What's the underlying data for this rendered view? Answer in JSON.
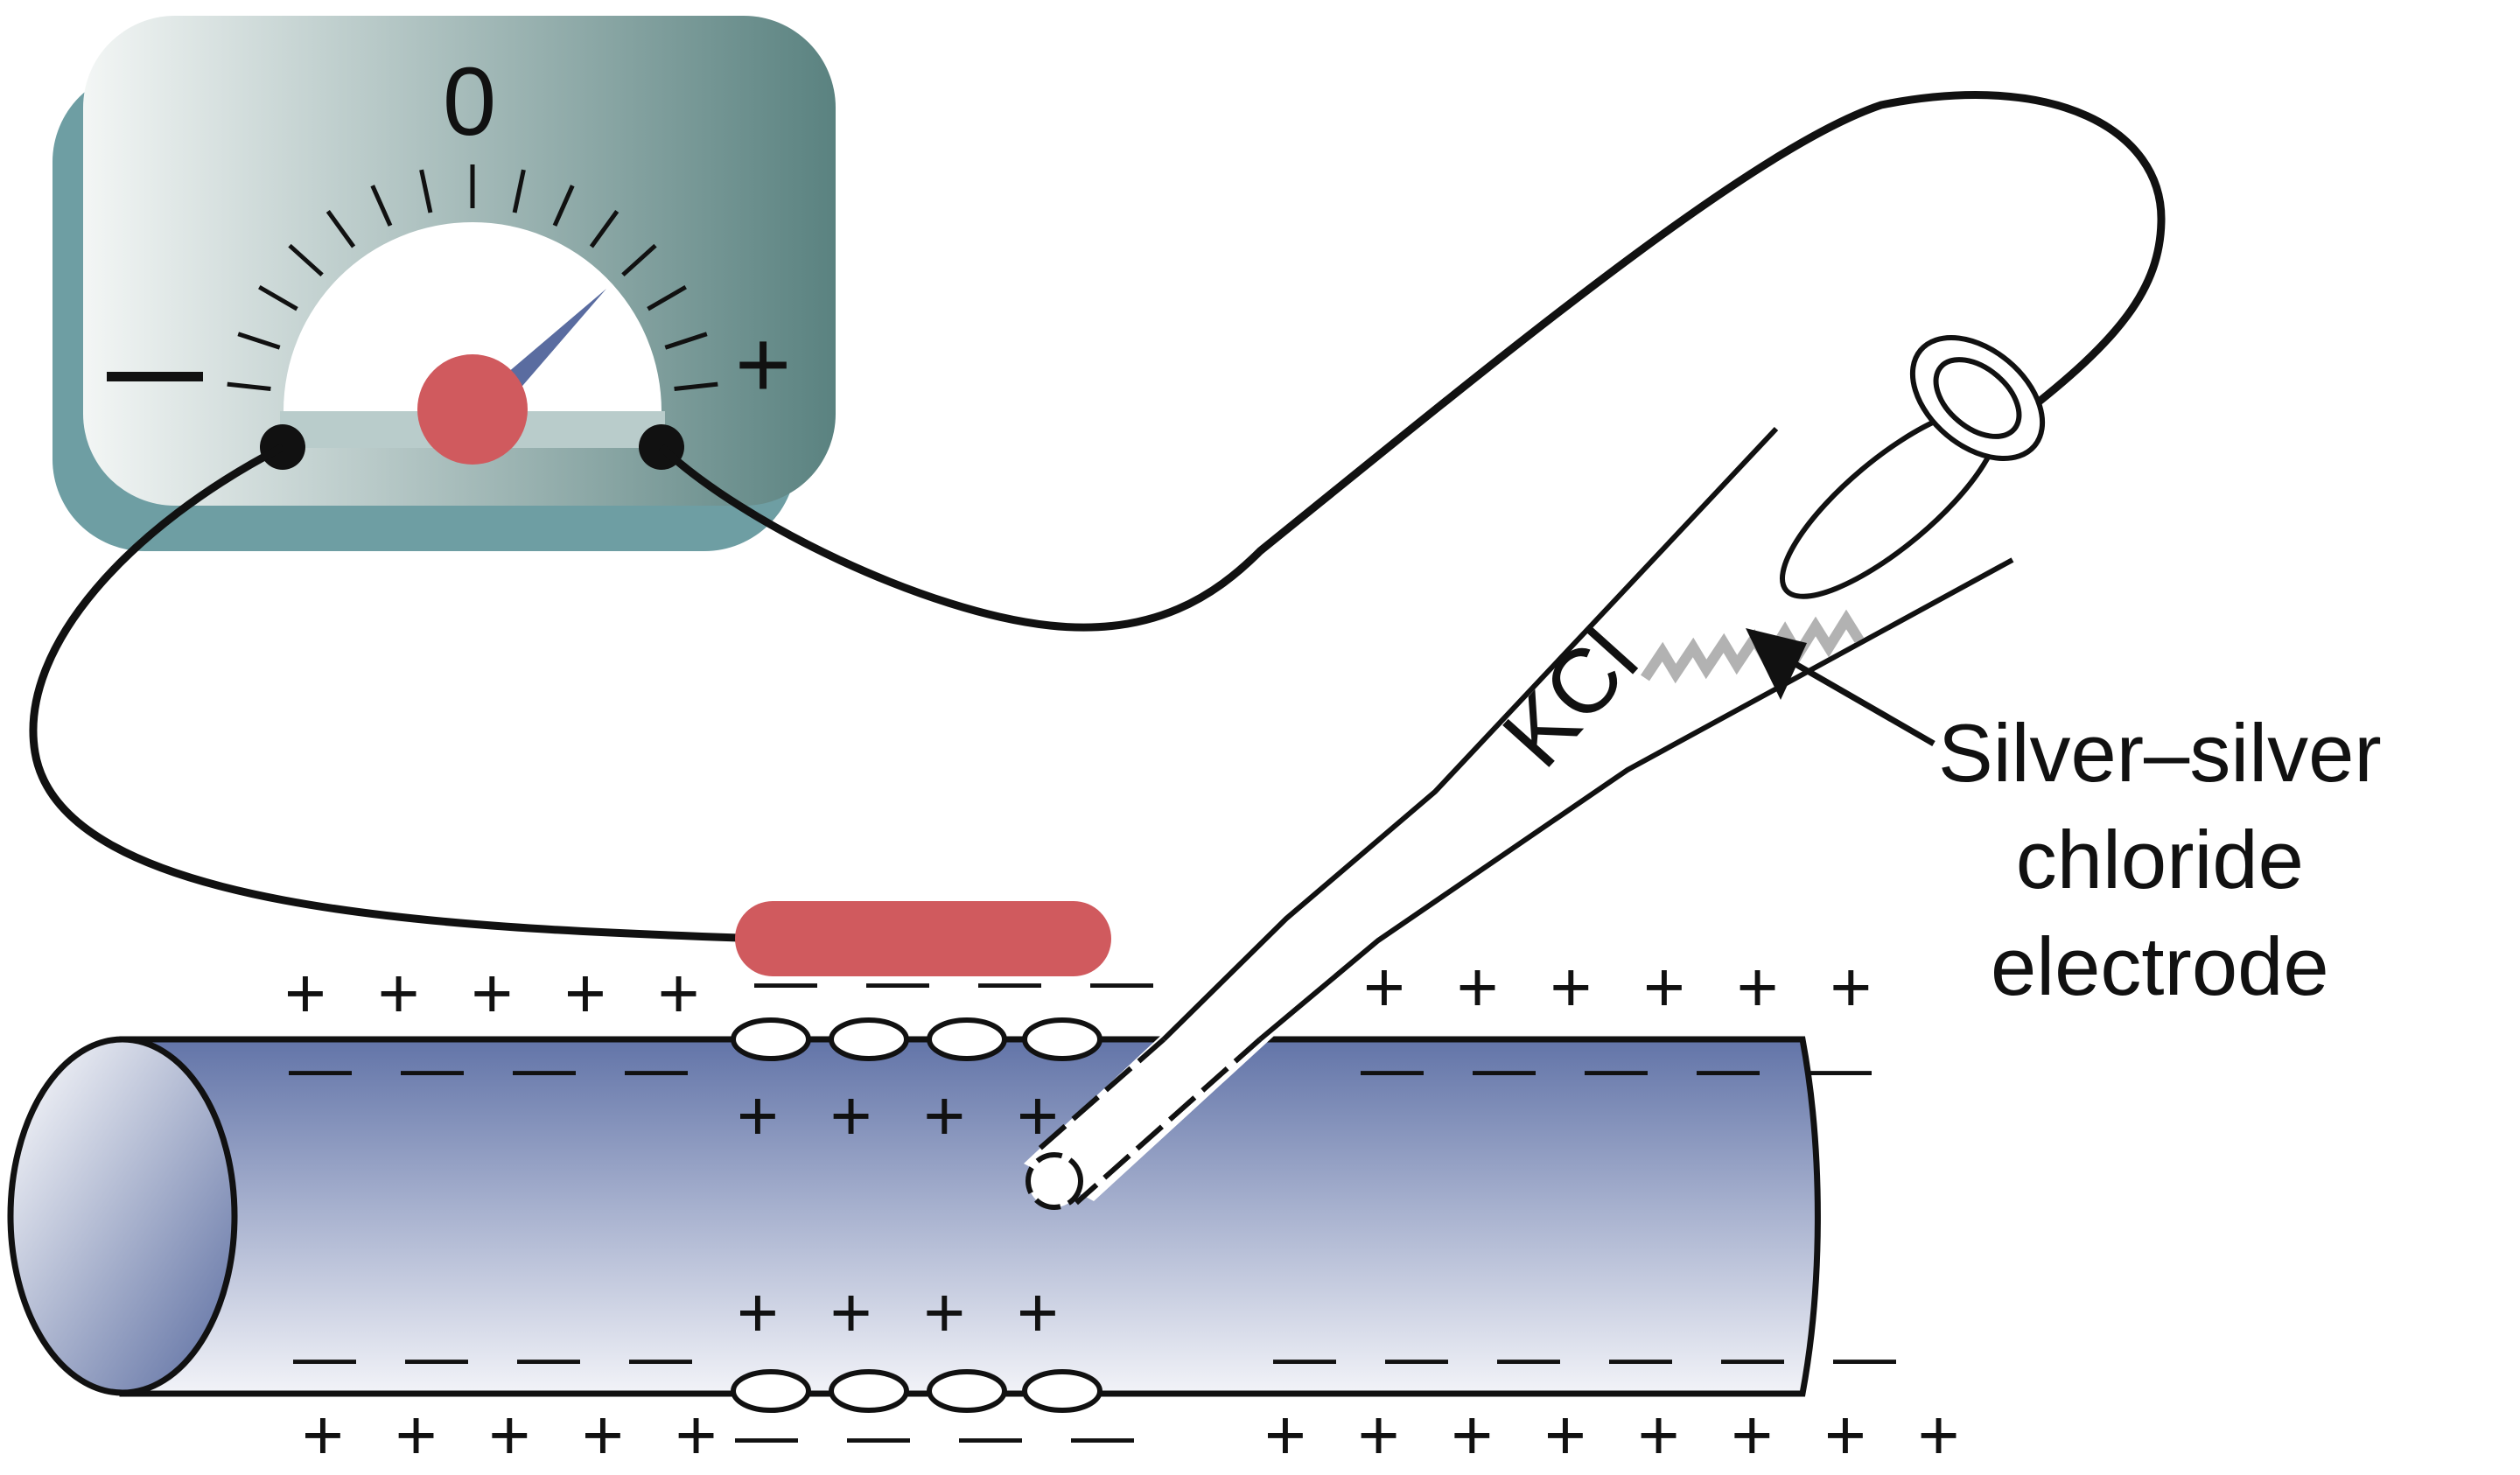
{
  "meter": {
    "zero_label": "0",
    "minus_label": "—",
    "plus_label": "+",
    "colors": {
      "body_dark": "#5a8280",
      "body_light": "#f3f6f5",
      "shadow": "#6e9ea3",
      "needle": "#5a6ca0",
      "hub": "#d05a5e"
    }
  },
  "electrode": {
    "solution_label": "KCl",
    "callout_lines": [
      "Silver–silver",
      "chloride",
      "electrode"
    ]
  },
  "fiber": {
    "colors": {
      "body_top": "#6274a8",
      "body_bottom": "#f2f3f8",
      "surface_electrode": "#d05a5e"
    },
    "charges": {
      "top_outside_left": "+ + + + +",
      "top_outside_middle": "— — — —",
      "top_outside_right": "+ + + + + +",
      "top_inside_left": "— — — —",
      "top_inside_middle": "+ + + +",
      "top_inside_right": "— — — — —",
      "bottom_inside_left": "— — — —",
      "bottom_inside_middle": "+ + + +",
      "bottom_inside_right": "— — — — — —",
      "bottom_outside_left": "+ + + + +",
      "bottom_outside_middle": "— — — —",
      "bottom_outside_right": "+ + + + + + + +"
    }
  }
}
